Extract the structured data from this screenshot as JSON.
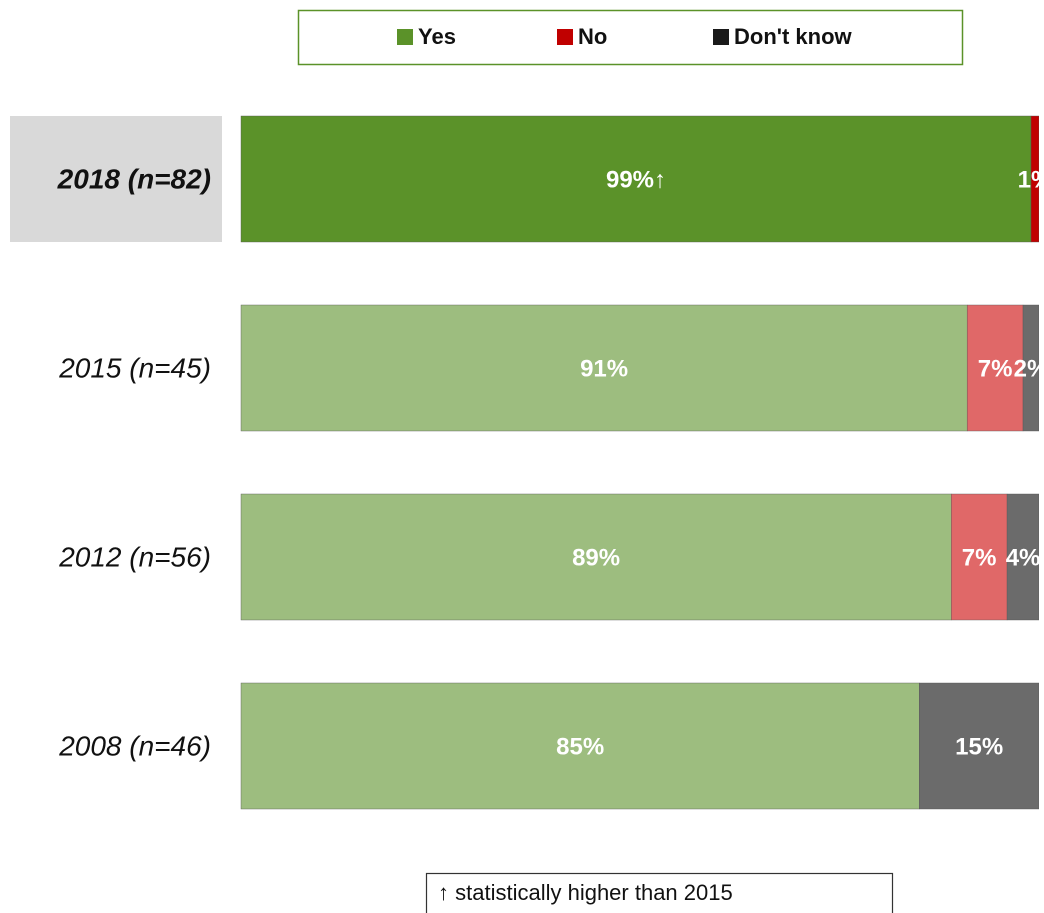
{
  "chart_data": {
    "type": "stacked_bar_horizontal",
    "categories": [
      "2018 (n=82)",
      "2015 (n=45)",
      "2012 (n=56)",
      "2008 (n=46)"
    ],
    "highlight": [
      true,
      false,
      false,
      false
    ],
    "xlim": [
      0,
      100
    ],
    "series": [
      {
        "name": "Yes",
        "color": "#5b9229",
        "colors": [
          "#5b9229",
          "#9dbd7f",
          "#9dbd7f",
          "#9dbd7f"
        ],
        "values": [
          99,
          91,
          89,
          85
        ],
        "value_labels": [
          "99%↑",
          "91%",
          "89%",
          "85%"
        ]
      },
      {
        "name": "No",
        "color": "#c00000",
        "colors": [
          "#c00000",
          "#e06868",
          "#e06868",
          "#e06868"
        ],
        "values": [
          1,
          7,
          7,
          null
        ],
        "value_labels": [
          "1%",
          "7%",
          "7%",
          null
        ]
      },
      {
        "name": "Don't know",
        "color": "#1a1a1a",
        "colors": [
          "#404040",
          "#6b6b6b",
          "#6b6b6b",
          "#6b6b6b"
        ],
        "values": [
          null,
          2,
          4,
          15
        ],
        "value_labels": [
          null,
          "2%",
          "4%",
          "15%"
        ]
      }
    ],
    "note": "↑ statistically higher than 2015"
  }
}
